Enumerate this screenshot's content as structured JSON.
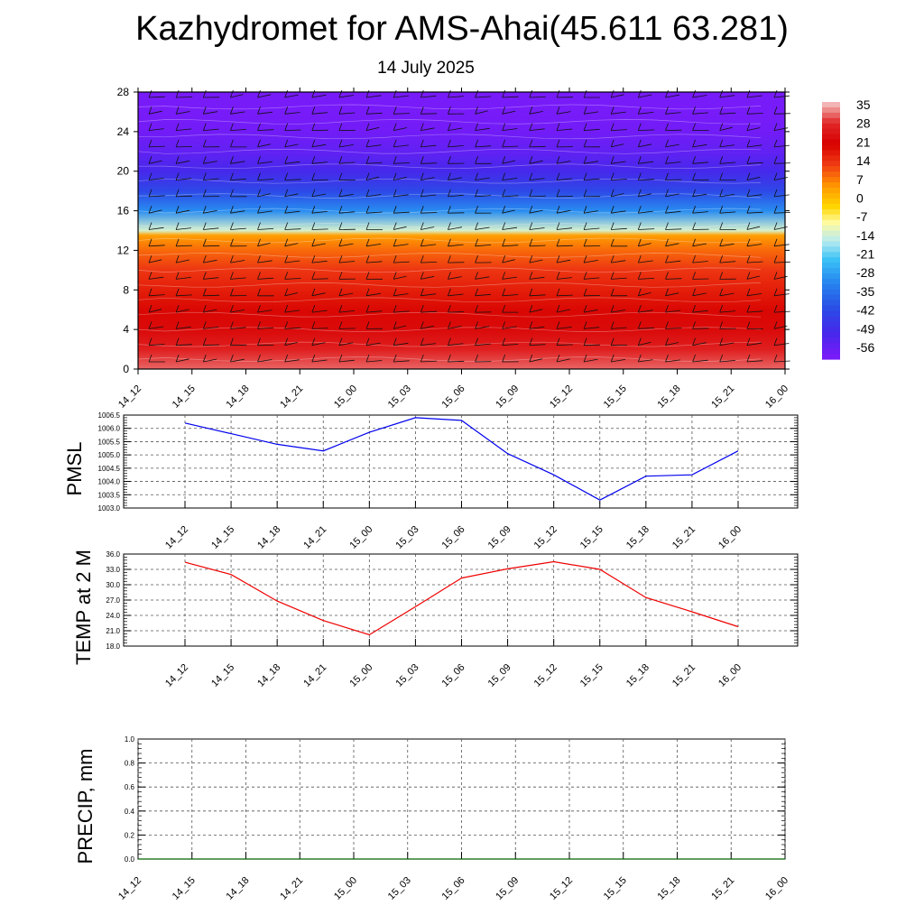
{
  "header": {
    "title": "Kazhydromet for AMS-Ahai(45.611 63.281)",
    "date": "14 July 2025"
  },
  "chart_data": [
    {
      "type": "heatmap",
      "name": "vertical-profile",
      "title": "",
      "xlabel": "",
      "ylabel": "",
      "x_ticks": [
        "14_12",
        "14_15",
        "14_18",
        "14_21",
        "15_00",
        "15_03",
        "15_06",
        "15_09",
        "15_12",
        "15_15",
        "15_18",
        "15_21",
        "16_00"
      ],
      "y_ticks": [
        0,
        4,
        8,
        12,
        16,
        20,
        24,
        28
      ],
      "ylim": [
        0,
        28
      ],
      "colorbar": {
        "labels": [
          35,
          28,
          21,
          14,
          7,
          0,
          -7,
          -14,
          -21,
          -28,
          -35,
          -42,
          -49,
          -56
        ],
        "range": [
          -60,
          38
        ]
      },
      "profile_levels": [
        0,
        2,
        4,
        6,
        8,
        10,
        12,
        13.5,
        14,
        16,
        18,
        20,
        22,
        24,
        26,
        28
      ],
      "profile_values": [
        33,
        28,
        24,
        21,
        18,
        15,
        10,
        5,
        -12,
        -30,
        -42,
        -50,
        -55,
        -58,
        -59,
        -59
      ],
      "has_wind_barbs": true
    },
    {
      "type": "line",
      "name": "pmsl",
      "ylabel": "PMSL",
      "x": [
        "14_12",
        "14_15",
        "14_18",
        "14_21",
        "15_00",
        "15_03",
        "15_06",
        "15_09",
        "15_12",
        "15_15",
        "15_18",
        "15_21",
        "16_00"
      ],
      "series": [
        {
          "values": [
            1006.2,
            1005.8,
            1005.4,
            1005.15,
            1005.85,
            1006.4,
            1006.3,
            1005.05,
            1004.25,
            1003.3,
            1004.2,
            1004.25,
            1005.15
          ],
          "color": "#0000ee"
        }
      ],
      "y_ticks": [
        "1003.0",
        "1003.5",
        "1004.0",
        "1004.5",
        "1005.0",
        "1005.5",
        "1006.0",
        "1006.5"
      ],
      "ylim": [
        1003.0,
        1006.5
      ],
      "grid": true
    },
    {
      "type": "line",
      "name": "temp-2m",
      "ylabel": "TEMP at 2 M",
      "x": [
        "14_12",
        "14_15",
        "14_18",
        "14_21",
        "15_00",
        "15_03",
        "15_06",
        "15_09",
        "15_12",
        "15_15",
        "15_18",
        "15_21",
        "16_00"
      ],
      "series": [
        {
          "values": [
            34.4,
            32.0,
            26.8,
            23.0,
            20.2,
            25.7,
            31.3,
            33.1,
            34.5,
            33.0,
            27.5,
            24.7,
            21.8
          ],
          "color": "#ee0000"
        }
      ],
      "y_ticks": [
        "18.0",
        "21.0",
        "24.0",
        "27.0",
        "30.0",
        "33.0",
        "36.0"
      ],
      "ylim": [
        18.0,
        36.0
      ],
      "grid": true
    },
    {
      "type": "line",
      "name": "precip",
      "ylabel": "PRECIP, mm",
      "x": [
        "14_12",
        "14_15",
        "14_18",
        "14_21",
        "15_00",
        "15_03",
        "15_06",
        "15_09",
        "15_12",
        "15_15",
        "15_18",
        "15_21",
        "16_00"
      ],
      "series": [
        {
          "values": [
            0,
            0,
            0,
            0,
            0,
            0,
            0,
            0,
            0,
            0,
            0,
            0,
            0
          ],
          "color": "#006400"
        }
      ],
      "y_ticks": [
        "0.0",
        "0.2",
        "0.4",
        "0.6",
        "0.8",
        "1.0"
      ],
      "ylim": [
        0.0,
        1.0
      ],
      "grid": true
    }
  ]
}
